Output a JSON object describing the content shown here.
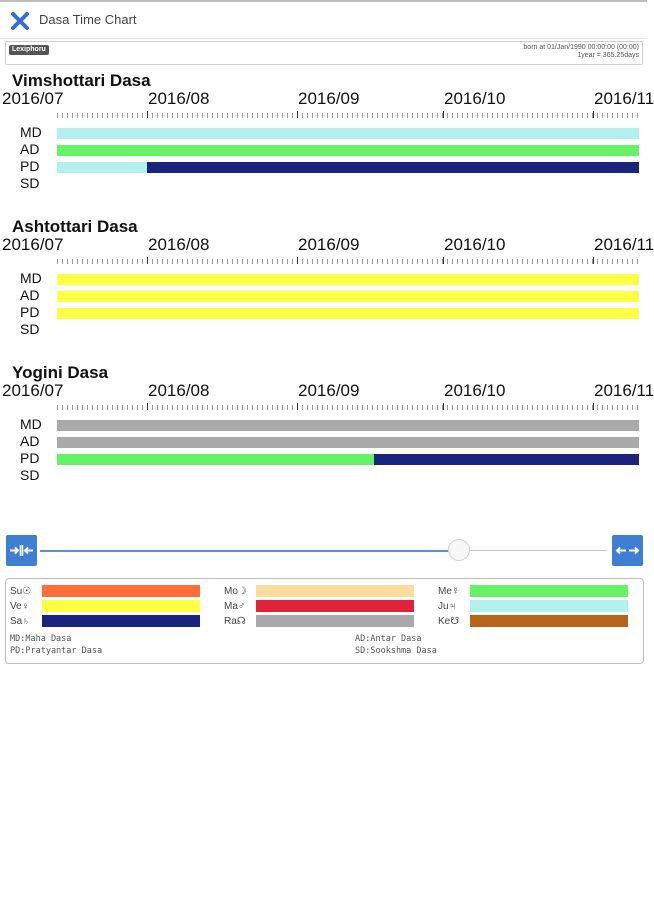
{
  "header": {
    "title": "Dasa Time Chart",
    "close_icon": "close-x-icon"
  },
  "info": {
    "logo": "Lexiphoru",
    "born_line": "born at  01/Jan/1990  00:00:00 (00:00)",
    "scale_line": "1year = 365.25days"
  },
  "timeline": {
    "months": [
      "2016/07",
      "2016/08",
      "2016/09",
      "2016/10",
      "2016/11"
    ]
  },
  "levels": [
    "MD",
    "AD",
    "PD",
    "SD"
  ],
  "sections": [
    {
      "title": "Vimshottari Dasa",
      "rows": [
        {
          "level": "MD",
          "segments": [
            {
              "planet": "Ju",
              "color": "#b3f0f0",
              "start_fraction": 0.0,
              "end_fraction": 1.0
            }
          ]
        },
        {
          "level": "AD",
          "segments": [
            {
              "planet": "Me",
              "color": "#66f266",
              "start_fraction": 0.0,
              "end_fraction": 1.0
            }
          ]
        },
        {
          "level": "PD",
          "segments": [
            {
              "planet": "Ju",
              "color": "#b3f0f0",
              "start_fraction": 0.0,
              "end_fraction": 0.155
            },
            {
              "planet": "Sa",
              "color": "#1a237e",
              "start_fraction": 0.155,
              "end_fraction": 1.0
            }
          ]
        },
        {
          "level": "SD",
          "segments": []
        }
      ]
    },
    {
      "title": "Ashtottari Dasa",
      "rows": [
        {
          "level": "MD",
          "segments": [
            {
              "planet": "Ve",
              "color": "#ffff44",
              "start_fraction": 0.0,
              "end_fraction": 1.0
            }
          ]
        },
        {
          "level": "AD",
          "segments": [
            {
              "planet": "Ve",
              "color": "#ffff44",
              "start_fraction": 0.0,
              "end_fraction": 1.0
            }
          ]
        },
        {
          "level": "PD",
          "segments": [
            {
              "planet": "Ve",
              "color": "#ffff44",
              "start_fraction": 0.0,
              "end_fraction": 1.0
            }
          ]
        },
        {
          "level": "SD",
          "segments": []
        }
      ]
    },
    {
      "title": "Yogini Dasa",
      "rows": [
        {
          "level": "MD",
          "segments": [
            {
              "planet": "Ra",
              "color": "#a9a9a9",
              "start_fraction": 0.0,
              "end_fraction": 1.0
            }
          ]
        },
        {
          "level": "AD",
          "segments": [
            {
              "planet": "Ra",
              "color": "#a9a9a9",
              "start_fraction": 0.0,
              "end_fraction": 1.0
            }
          ]
        },
        {
          "level": "PD",
          "segments": [
            {
              "planet": "Me",
              "color": "#66f266",
              "start_fraction": 0.0,
              "end_fraction": 0.545
            },
            {
              "planet": "Sa",
              "color": "#1a237e",
              "start_fraction": 0.545,
              "end_fraction": 1.0
            }
          ]
        },
        {
          "level": "SD",
          "segments": []
        }
      ]
    }
  ],
  "slider": {
    "value_fraction": 0.75,
    "zoom_in_icon": "collapse-arrows-icon",
    "zoom_out_icon": "expand-arrows-icon"
  },
  "legend": {
    "planets": [
      {
        "label": "Su☉",
        "color": "#ff6d38"
      },
      {
        "label": "Mo☽",
        "color": "#fddb9a"
      },
      {
        "label": "Me☿",
        "color": "#66f266"
      },
      {
        "label": "Ve♀",
        "color": "#ffff44"
      },
      {
        "label": "Ma♂",
        "color": "#e0223a"
      },
      {
        "label": "Ju♃",
        "color": "#b3f0f0"
      },
      {
        "label": "Sa♄",
        "color": "#1a237e"
      },
      {
        "label": "Ra☊",
        "color": "#a9a9a9"
      },
      {
        "label": "Ke☋",
        "color": "#b8651c"
      }
    ],
    "notes": [
      "MD:Maha Dasa",
      "AD:Antar Dasa",
      "PD:Pratyantar Dasa",
      "SD:Sookshma Dasa"
    ]
  }
}
